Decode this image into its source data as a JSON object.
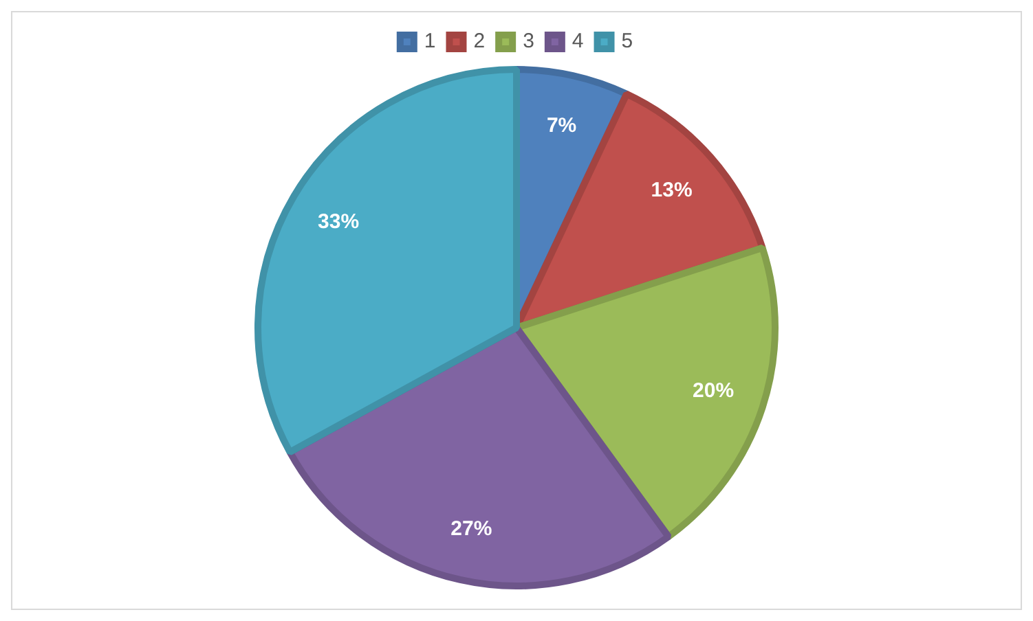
{
  "chart_data": {
    "type": "pie",
    "categories": [
      "1",
      "2",
      "3",
      "4",
      "5"
    ],
    "values": [
      7,
      13,
      20,
      27,
      33
    ],
    "colors": [
      "#4f81bd",
      "#c0504d",
      "#9bbb59",
      "#8064a2",
      "#4bacc6"
    ],
    "value_labels": [
      "7%",
      "13%",
      "20%",
      "27%",
      "33%"
    ],
    "legend": "top"
  }
}
